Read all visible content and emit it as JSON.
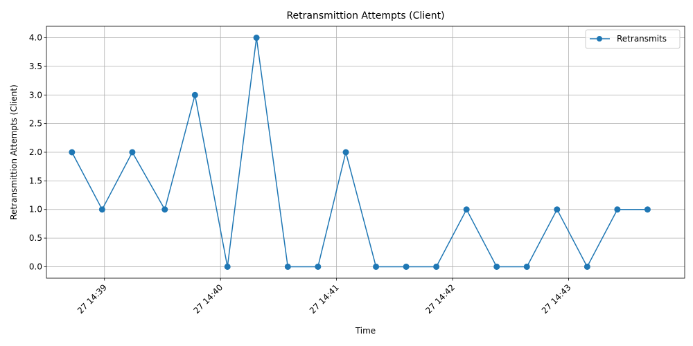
{
  "chart_data": {
    "type": "line",
    "title": "Retransmittion Attempts (Client)",
    "xlabel": "Time",
    "ylabel": "Retransmittion Attempts (Client)",
    "x_tick_labels": [
      "27 14:39",
      "27 14:40",
      "27 14:41",
      "27 14:42",
      "27 14:43"
    ],
    "x_tick_minutes": [
      39,
      40,
      41,
      42,
      43
    ],
    "y_ticks": [
      0.0,
      0.5,
      1.0,
      1.5,
      2.0,
      2.5,
      3.0,
      3.5,
      4.0
    ],
    "y_tick_labels": [
      "0.0",
      "0.5",
      "1.0",
      "1.5",
      "2.0",
      "2.5",
      "3.0",
      "3.5",
      "4.0"
    ],
    "xlim_minutes": [
      38.5,
      44.0
    ],
    "ylim": [
      -0.2,
      4.2
    ],
    "grid": true,
    "legend_position": "top-right",
    "series": [
      {
        "name": "Retransmits",
        "color": "#1f77b4",
        "x_minutes": [
          38.72,
          38.98,
          39.24,
          39.52,
          39.78,
          40.06,
          40.31,
          40.58,
          40.84,
          41.08,
          41.34,
          41.6,
          41.86,
          42.12,
          42.38,
          42.64,
          42.9,
          43.16,
          43.42,
          43.68
        ],
        "values": [
          2,
          1,
          2,
          1,
          3,
          0,
          4,
          0,
          0,
          2,
          0,
          0,
          0,
          1,
          0,
          0,
          1,
          0,
          1,
          1
        ]
      }
    ]
  }
}
